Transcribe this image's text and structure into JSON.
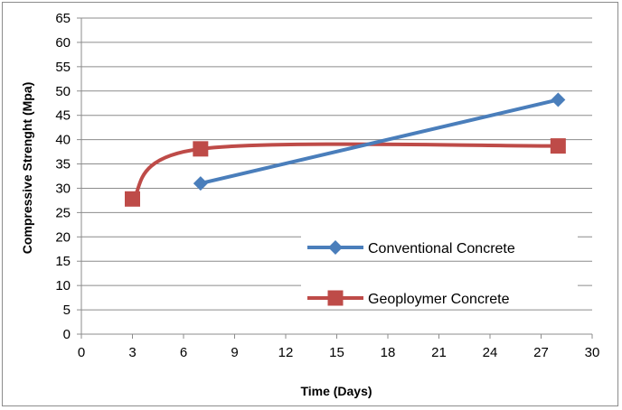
{
  "chart_data": {
    "type": "line",
    "title": "",
    "xlabel": "Time (Days)",
    "ylabel": "Compressive Strenght (Mpa)",
    "xlim": [
      0,
      30
    ],
    "ylim": [
      0,
      65
    ],
    "xticks": [
      0,
      3,
      6,
      9,
      12,
      15,
      18,
      21,
      24,
      27,
      30
    ],
    "yticks": [
      0,
      5,
      10,
      15,
      20,
      25,
      30,
      35,
      40,
      45,
      50,
      55,
      60,
      65
    ],
    "grid": "horizontal",
    "legend_position": "right",
    "series": [
      {
        "name": "Conventional Concrete",
        "color": "#4a7ebb",
        "marker": "diamond",
        "smooth": false,
        "x": [
          7,
          28
        ],
        "y": [
          31,
          48.2
        ]
      },
      {
        "name": "Geoploymer Concrete",
        "color": "#be4b48",
        "marker": "square",
        "smooth": true,
        "x": [
          3,
          7,
          28
        ],
        "y": [
          27.8,
          38.1,
          38.7
        ]
      }
    ]
  }
}
